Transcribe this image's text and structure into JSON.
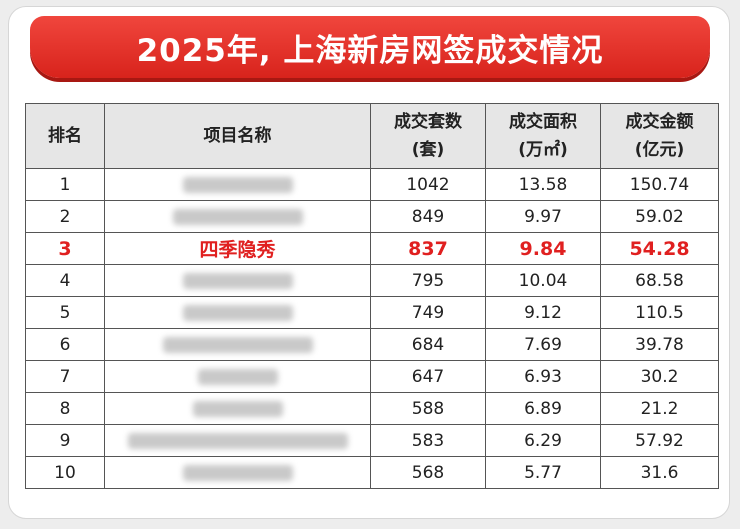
{
  "header": {
    "title": "2025年, 上海新房网签成交情况"
  },
  "table": {
    "columns": [
      {
        "label": "排名"
      },
      {
        "label": "项目名称"
      },
      {
        "label": "成交套数",
        "unit": "(套)"
      },
      {
        "label": "成交面积",
        "unit": "(万㎡)"
      },
      {
        "label": "成交金额",
        "unit": "(亿元)"
      }
    ],
    "rows": [
      {
        "rank": "1",
        "units": "1042",
        "area": "13.58",
        "amount": "150.74"
      },
      {
        "rank": "2",
        "units": "849",
        "area": "9.97",
        "amount": "59.02"
      },
      {
        "rank": "3",
        "project": "四季隐秀",
        "units": "837",
        "area": "9.84",
        "amount": "54.28",
        "highlight": true
      },
      {
        "rank": "4",
        "units": "795",
        "area": "10.04",
        "amount": "68.58"
      },
      {
        "rank": "5",
        "units": "749",
        "area": "9.12",
        "amount": "110.5"
      },
      {
        "rank": "6",
        "units": "684",
        "area": "7.69",
        "amount": "39.78"
      },
      {
        "rank": "7",
        "units": "647",
        "area": "6.93",
        "amount": "30.2"
      },
      {
        "rank": "8",
        "units": "588",
        "area": "6.89",
        "amount": "21.2"
      },
      {
        "rank": "9",
        "units": "583",
        "area": "6.29",
        "amount": "57.92"
      },
      {
        "rank": "10",
        "units": "568",
        "area": "5.77",
        "amount": "31.6"
      }
    ]
  }
}
